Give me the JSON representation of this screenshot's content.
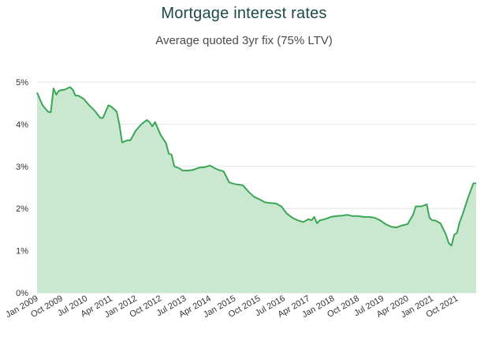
{
  "chart_data": {
    "type": "area",
    "title": "Mortgage interest rates",
    "subtitle": "Average quoted 3yr fix (75% LTV)",
    "xlabel": "",
    "ylabel": "",
    "ylim": [
      0,
      5
    ],
    "yticks": [
      "0%",
      "1%",
      "2%",
      "3%",
      "4%",
      "5%"
    ],
    "xticks": [
      "Jan 2009",
      "Oct 2009",
      "Jul 2010",
      "Apr 2011",
      "Jan 2012",
      "Oct 2012",
      "Jul 2013",
      "Apr 2014",
      "Jan 2015",
      "Oct 2015",
      "Jul 2016",
      "Apr 2017",
      "Jan 2018",
      "Oct 2018",
      "Jul 2019",
      "Apr 2020",
      "Jan 2021",
      "Oct 2021"
    ],
    "grid": true,
    "line_color": "#3aa655",
    "fill_color": "#c9e8cf",
    "series": [
      {
        "name": "",
        "x": [
          "2009-01",
          "2009-03",
          "2009-05",
          "2009-06",
          "2009-07",
          "2009-08",
          "2009-09",
          "2009-11",
          "2010-01",
          "2010-02",
          "2010-03",
          "2010-04",
          "2010-06",
          "2010-08",
          "2010-10",
          "2010-12",
          "2011-01",
          "2011-03",
          "2011-04",
          "2011-06",
          "2011-07",
          "2011-08",
          "2011-10",
          "2011-11",
          "2012-01",
          "2012-03",
          "2012-05",
          "2012-06",
          "2012-07",
          "2012-08",
          "2012-10",
          "2012-12",
          "2013-01",
          "2013-02",
          "2013-03",
          "2013-05",
          "2013-06",
          "2013-08",
          "2013-10",
          "2013-12",
          "2014-02",
          "2014-04",
          "2014-06",
          "2014-07",
          "2014-09",
          "2014-11",
          "2015-01",
          "2015-02",
          "2015-04",
          "2015-06",
          "2015-08",
          "2015-10",
          "2015-12",
          "2016-02",
          "2016-04",
          "2016-06",
          "2016-08",
          "2016-10",
          "2016-12",
          "2017-02",
          "2017-04",
          "2017-05",
          "2017-06",
          "2017-07",
          "2017-08",
          "2017-10",
          "2017-12",
          "2018-02",
          "2018-04",
          "2018-06",
          "2018-08",
          "2018-10",
          "2018-12",
          "2019-02",
          "2019-04",
          "2019-06",
          "2019-08",
          "2019-10",
          "2019-12",
          "2020-02",
          "2020-04",
          "2020-06",
          "2020-07",
          "2020-09",
          "2020-11",
          "2020-12",
          "2021-01",
          "2021-02",
          "2021-04",
          "2021-06",
          "2021-07",
          "2021-08",
          "2021-09",
          "2021-10",
          "2021-11",
          "2021-12",
          "2022-02",
          "2022-04",
          "2022-05"
        ],
        "values": [
          4.75,
          4.45,
          4.3,
          4.28,
          4.85,
          4.7,
          4.8,
          4.82,
          4.88,
          4.82,
          4.68,
          4.68,
          4.6,
          4.45,
          4.32,
          4.15,
          4.15,
          4.45,
          4.42,
          4.3,
          4.0,
          3.57,
          3.62,
          3.62,
          3.85,
          4.0,
          4.1,
          4.05,
          3.95,
          4.05,
          3.75,
          3.55,
          3.3,
          3.28,
          3.0,
          2.95,
          2.9,
          2.9,
          2.92,
          2.97,
          2.98,
          3.02,
          2.95,
          2.92,
          2.88,
          2.62,
          2.58,
          2.57,
          2.55,
          2.4,
          2.28,
          2.22,
          2.15,
          2.13,
          2.12,
          2.05,
          1.88,
          1.78,
          1.72,
          1.68,
          1.75,
          1.72,
          1.8,
          1.65,
          1.72,
          1.75,
          1.8,
          1.82,
          1.83,
          1.85,
          1.82,
          1.82,
          1.8,
          1.8,
          1.78,
          1.72,
          1.63,
          1.57,
          1.55,
          1.6,
          1.63,
          1.85,
          2.05,
          2.05,
          2.1,
          1.78,
          1.72,
          1.72,
          1.65,
          1.38,
          1.18,
          1.12,
          1.38,
          1.42,
          1.68,
          1.85,
          2.25,
          2.6,
          2.6
        ]
      }
    ]
  }
}
